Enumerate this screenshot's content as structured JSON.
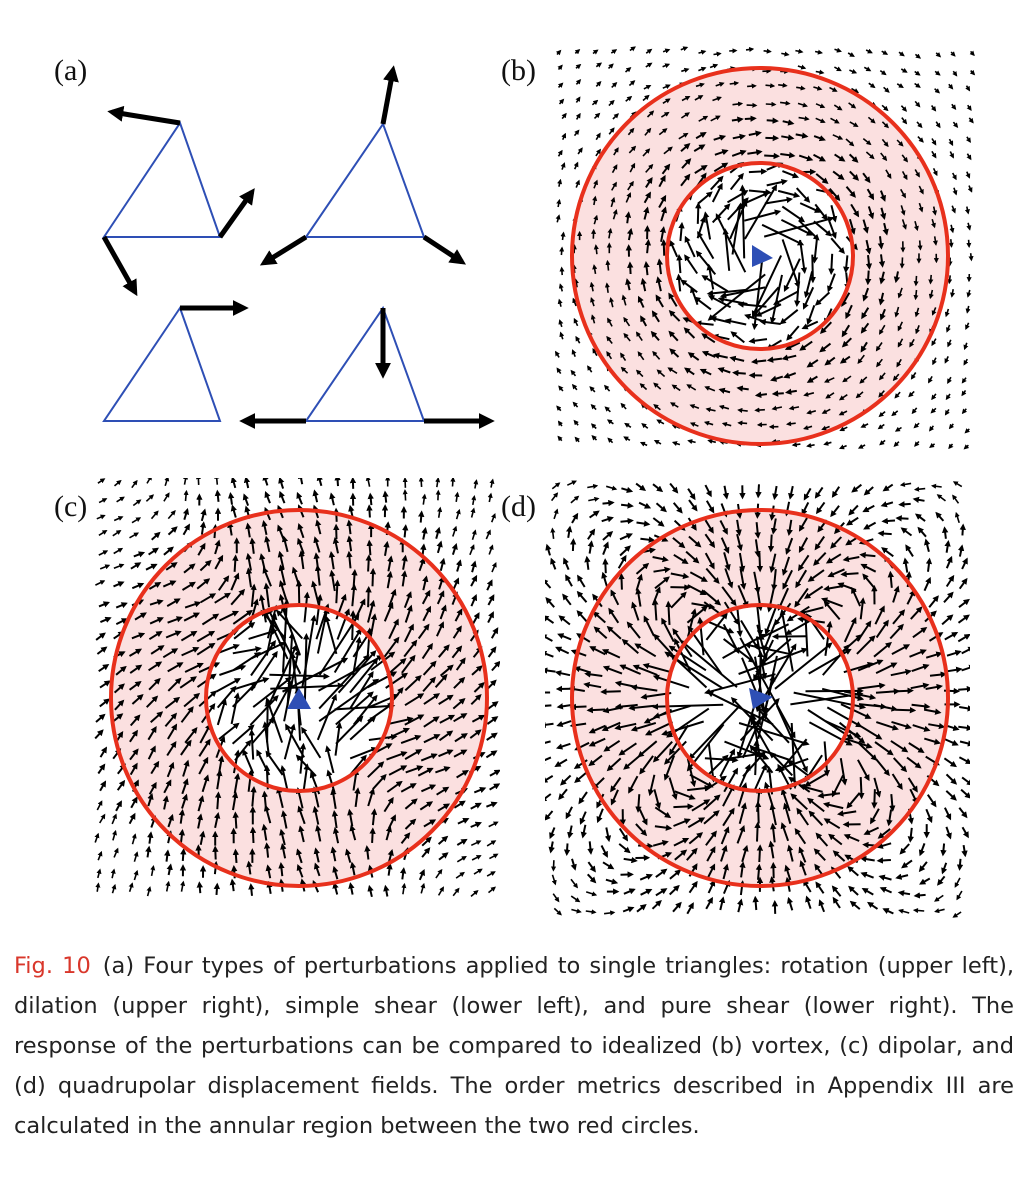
{
  "panels": {
    "a": {
      "label": "(a)",
      "perturbations": [
        "rotation",
        "dilation",
        "simple shear",
        "pure shear"
      ]
    },
    "b": {
      "label": "(b)",
      "field": "vortex"
    },
    "c": {
      "label": "(c)",
      "field": "dipolar"
    },
    "d": {
      "label": "(d)",
      "field": "quadrupolar"
    }
  },
  "colors": {
    "triangle": "#2e4fb5",
    "circle": "#e8301c",
    "annulus": "#fbe0e0",
    "arrow": "#000000",
    "marker": "#2e4fb5",
    "fig_number": "#d9372b"
  },
  "caption": {
    "fig_number": "Fig. 10",
    "text": "(a) Four types of perturbations applied to single triangles: rotation (upper left), dilation (upper right), simple shear (lower left), and pure shear (lower right). The response of the perturbations can be compared to idealized (b) vortex, (c) dipolar, and (d) quadrupolar displacement fields. The order metrics described in Appendix III are calculated in the annular region between the two red circles."
  }
}
